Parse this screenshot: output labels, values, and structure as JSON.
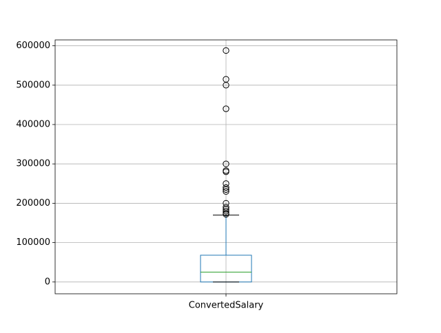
{
  "chart_data": {
    "type": "box",
    "categories": [
      "ConvertedSalary"
    ],
    "box": {
      "whisker_low": 0,
      "q1": 0,
      "median": 25000,
      "q3": 68000,
      "whisker_high": 170000,
      "outliers": [
        172000,
        175000,
        180000,
        185000,
        190000,
        200000,
        230000,
        235000,
        240000,
        250000,
        280000,
        283000,
        300000,
        440000,
        500000,
        515000,
        588000
      ]
    },
    "ylim": [
      -30000,
      615000
    ],
    "yticks": [
      0,
      100000,
      200000,
      300000,
      400000,
      500000,
      600000
    ],
    "ytick_labels": [
      "0",
      "100000",
      "200000",
      "300000",
      "400000",
      "500000",
      "600000"
    ],
    "grid": true,
    "colors": {
      "box": "#1f77b4",
      "median": "#2ca02c",
      "whisker_cap": "#000000",
      "outlier": "#000000",
      "grid": "#b0b0b0"
    }
  }
}
